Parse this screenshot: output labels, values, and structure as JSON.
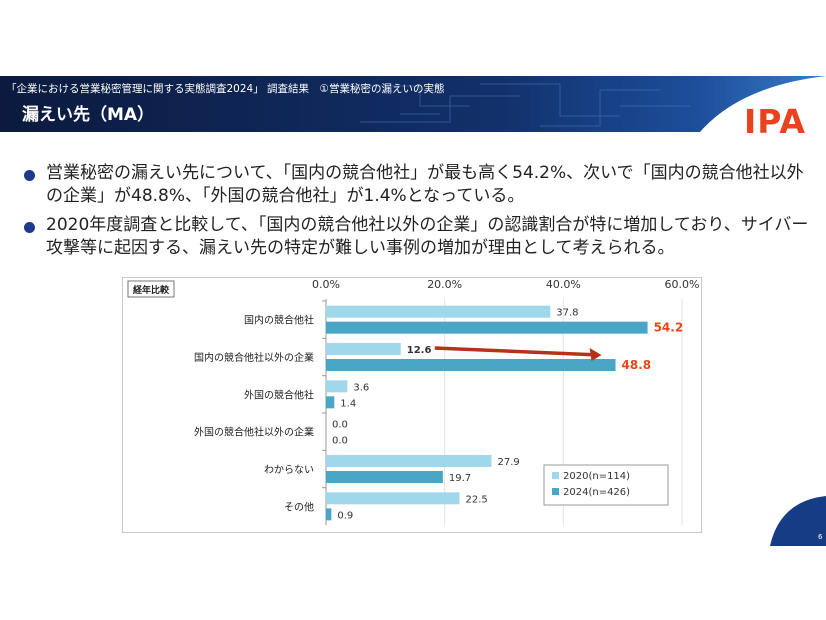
{
  "header": {
    "subtitle": "「企業における営業秘密管理に関する実態調査2024」 調査結果　①営業秘密の漏えいの実態",
    "title": "漏えい先（MA）"
  },
  "logo_text": "IPA",
  "bullets": [
    "営業秘密の漏えい先について、「国内の競合他社」が最も高く54.2%、次いで「国内の競合他社以外の企業」が48.8%、「外国の競合他社」が1.4%となっている。",
    "2020年度調査と比較して、「国内の競合他社以外の企業」の認識割合が特に増加しており、サイバー攻撃等に起因する、漏えい先の特定が難しい事例の増加が理由として考えられる。"
  ],
  "page_number": "6",
  "colors": {
    "header_bg": "#0f2250",
    "bullet": "#1f3a8a",
    "series_2020": "#9fd8ea",
    "series_2024": "#4aa6c6",
    "highlight": "#e8471b",
    "logo": "#e8421f"
  },
  "chart_data": {
    "type": "bar",
    "orientation": "horizontal",
    "box_label": "経年比較",
    "categories": [
      "国内の競合他社",
      "国内の競合他社以外の企業",
      "外国の競合他社",
      "外国の競合他社以外の企業",
      "わからない",
      "その他"
    ],
    "series": [
      {
        "name": "2020(n=114)",
        "values": [
          37.8,
          12.6,
          3.6,
          0.0,
          27.9,
          22.5
        ],
        "labels": [
          "37.8",
          "12.6",
          "3.6",
          "0.0",
          "27.9",
          "22.5"
        ]
      },
      {
        "name": "2024(n=426)",
        "values": [
          54.2,
          48.8,
          1.4,
          0.0,
          19.7,
          0.9
        ],
        "labels": [
          "54.2",
          "48.8",
          "1.4",
          "0.0",
          "19.7",
          "0.9"
        ]
      }
    ],
    "x_ticks": [
      "0.0%",
      "20.0%",
      "40.0%",
      "60.0%"
    ],
    "xlim": [
      0,
      60
    ],
    "grid": true,
    "legend_position": "bottom-right",
    "highlighted_labels": [
      "54.2",
      "48.8"
    ],
    "bold_labels": [
      "12.6"
    ],
    "annotation_arrow": {
      "category": "国内の競合他社以外の企業",
      "from": 12.6,
      "to": 48.8
    }
  }
}
